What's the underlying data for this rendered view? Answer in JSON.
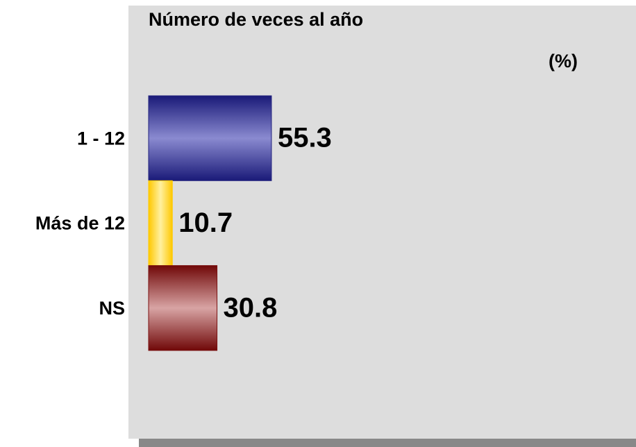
{
  "chart_data": {
    "type": "hbar",
    "title": "Número de veces al año",
    "subtitle": "(%)",
    "categories": [
      "1 - 12",
      "Más de 12",
      "NS"
    ],
    "values": [
      55.3,
      10.7,
      30.8
    ],
    "colors": [
      "#23237f",
      "#ffcc00",
      "#7a1010"
    ]
  }
}
